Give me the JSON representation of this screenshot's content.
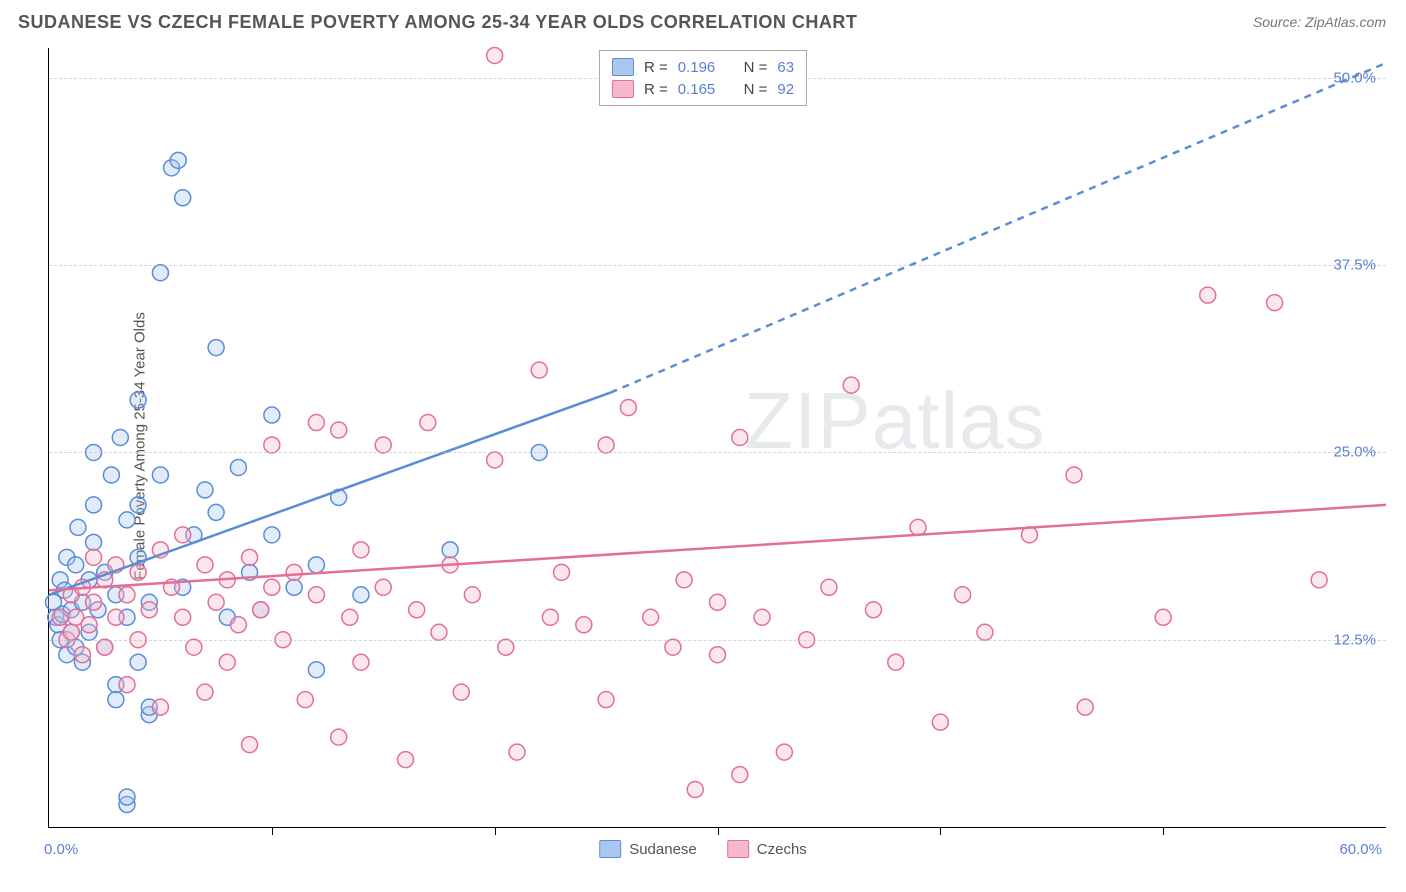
{
  "title": "SUDANESE VS CZECH FEMALE POVERTY AMONG 25-34 YEAR OLDS CORRELATION CHART",
  "source": "Source: ZipAtlas.com",
  "ylabel": "Female Poverty Among 25-34 Year Olds",
  "watermark": "ZIPatlas",
  "chart": {
    "type": "scatter",
    "xlim": [
      0,
      60
    ],
    "ylim": [
      0,
      52
    ],
    "xtick_positions": [
      10,
      20,
      30,
      40,
      50
    ],
    "y_gridlines": [
      12.5,
      25.0,
      37.5,
      50.0
    ],
    "y_tick_labels": [
      "12.5%",
      "25.0%",
      "37.5%",
      "50.0%"
    ],
    "x0_label": "0.0%",
    "xmax_label": "60.0%",
    "background_color": "#ffffff",
    "grid_color": "#bbbbbb",
    "axis_color": "#000000",
    "marker_radius": 8,
    "series": [
      {
        "name": "Sudanese",
        "color_stroke": "#5b8dd6",
        "color_fill": "#a9c7ef",
        "R": "0.196",
        "N": "63",
        "regression": {
          "solid": {
            "x1": 0,
            "y1": 15.5,
            "x2": 25.2,
            "y2": 29.0
          },
          "dashed": {
            "x1": 25.2,
            "y1": 29.0,
            "x2": 60,
            "y2": 51.0
          },
          "stroke_width": 2.5,
          "dash": "7 6"
        },
        "points": [
          [
            0.2,
            15.0
          ],
          [
            0.3,
            14.0
          ],
          [
            0.4,
            13.5
          ],
          [
            0.5,
            16.5
          ],
          [
            0.5,
            12.5
          ],
          [
            0.6,
            14.2
          ],
          [
            0.7,
            15.8
          ],
          [
            0.8,
            11.5
          ],
          [
            0.8,
            18.0
          ],
          [
            1.0,
            13.0
          ],
          [
            1.0,
            14.5
          ],
          [
            1.2,
            12.0
          ],
          [
            1.2,
            17.5
          ],
          [
            1.3,
            20.0
          ],
          [
            1.5,
            15.0
          ],
          [
            1.5,
            11.0
          ],
          [
            1.8,
            16.5
          ],
          [
            1.8,
            13.0
          ],
          [
            2.0,
            19.0
          ],
          [
            2.0,
            21.5
          ],
          [
            2.0,
            25.0
          ],
          [
            2.2,
            14.5
          ],
          [
            2.5,
            12.0
          ],
          [
            2.5,
            17.0
          ],
          [
            2.8,
            23.5
          ],
          [
            3.0,
            15.5
          ],
          [
            3.0,
            9.5
          ],
          [
            3.0,
            8.5
          ],
          [
            3.2,
            26.0
          ],
          [
            3.5,
            20.5
          ],
          [
            3.5,
            14.0
          ],
          [
            3.5,
            1.5
          ],
          [
            3.5,
            2.0
          ],
          [
            4.0,
            18.0
          ],
          [
            4.0,
            11.0
          ],
          [
            4.0,
            21.5
          ],
          [
            4.0,
            28.5
          ],
          [
            4.5,
            15.0
          ],
          [
            4.5,
            7.5
          ],
          [
            4.5,
            8.0
          ],
          [
            5.0,
            23.5
          ],
          [
            5.0,
            37.0
          ],
          [
            5.5,
            44.0
          ],
          [
            5.8,
            44.5
          ],
          [
            6.0,
            16.0
          ],
          [
            6.0,
            42.0
          ],
          [
            6.5,
            19.5
          ],
          [
            7.0,
            22.5
          ],
          [
            7.5,
            21.0
          ],
          [
            7.5,
            32.0
          ],
          [
            8.0,
            14.0
          ],
          [
            8.5,
            24.0
          ],
          [
            9.0,
            17.0
          ],
          [
            9.5,
            14.5
          ],
          [
            10.0,
            19.5
          ],
          [
            10.0,
            27.5
          ],
          [
            11.0,
            16.0
          ],
          [
            12.0,
            17.5
          ],
          [
            12.0,
            10.5
          ],
          [
            13.0,
            22.0
          ],
          [
            14.0,
            15.5
          ],
          [
            18.0,
            18.5
          ],
          [
            22.0,
            25.0
          ]
        ]
      },
      {
        "name": "Czechs",
        "color_stroke": "#e36f99",
        "color_fill": "#f5b9cd",
        "R": "0.165",
        "N": "92",
        "regression": {
          "solid": {
            "x1": 0,
            "y1": 15.8,
            "x2": 60,
            "y2": 21.5
          },
          "dashed": null,
          "stroke_width": 2.5
        },
        "points": [
          [
            0.5,
            14.0
          ],
          [
            0.8,
            12.5
          ],
          [
            1.0,
            15.5
          ],
          [
            1.0,
            13.0
          ],
          [
            1.2,
            14.0
          ],
          [
            1.5,
            16.0
          ],
          [
            1.5,
            11.5
          ],
          [
            1.8,
            13.5
          ],
          [
            2.0,
            15.0
          ],
          [
            2.0,
            18.0
          ],
          [
            2.5,
            12.0
          ],
          [
            2.5,
            16.5
          ],
          [
            3.0,
            14.0
          ],
          [
            3.0,
            17.5
          ],
          [
            3.5,
            15.5
          ],
          [
            3.5,
            9.5
          ],
          [
            4.0,
            17.0
          ],
          [
            4.0,
            12.5
          ],
          [
            4.5,
            14.5
          ],
          [
            5.0,
            18.5
          ],
          [
            5.0,
            8.0
          ],
          [
            5.5,
            16.0
          ],
          [
            6.0,
            14.0
          ],
          [
            6.0,
            19.5
          ],
          [
            6.5,
            12.0
          ],
          [
            7.0,
            17.5
          ],
          [
            7.0,
            9.0
          ],
          [
            7.5,
            15.0
          ],
          [
            8.0,
            16.5
          ],
          [
            8.0,
            11.0
          ],
          [
            8.5,
            13.5
          ],
          [
            9.0,
            5.5
          ],
          [
            9.0,
            18.0
          ],
          [
            9.5,
            14.5
          ],
          [
            10.0,
            16.0
          ],
          [
            10.0,
            25.5
          ],
          [
            10.5,
            12.5
          ],
          [
            11.0,
            17.0
          ],
          [
            11.5,
            8.5
          ],
          [
            12.0,
            27.0
          ],
          [
            12.0,
            15.5
          ],
          [
            13.0,
            6.0
          ],
          [
            13.0,
            26.5
          ],
          [
            13.5,
            14.0
          ],
          [
            14.0,
            18.5
          ],
          [
            14.0,
            11.0
          ],
          [
            15.0,
            25.5
          ],
          [
            15.0,
            16.0
          ],
          [
            16.0,
            4.5
          ],
          [
            16.5,
            14.5
          ],
          [
            17.0,
            27.0
          ],
          [
            17.5,
            13.0
          ],
          [
            18.0,
            17.5
          ],
          [
            18.5,
            9.0
          ],
          [
            19.0,
            15.5
          ],
          [
            20.0,
            24.5
          ],
          [
            20.0,
            51.5
          ],
          [
            20.5,
            12.0
          ],
          [
            21.0,
            5.0
          ],
          [
            22.0,
            30.5
          ],
          [
            22.5,
            14.0
          ],
          [
            23.0,
            17.0
          ],
          [
            24.0,
            13.5
          ],
          [
            25.0,
            8.5
          ],
          [
            25.0,
            25.5
          ],
          [
            26.0,
            28.0
          ],
          [
            27.0,
            14.0
          ],
          [
            28.0,
            12.0
          ],
          [
            28.5,
            16.5
          ],
          [
            29.0,
            2.5
          ],
          [
            30.0,
            11.5
          ],
          [
            30.0,
            15.0
          ],
          [
            31.0,
            3.5
          ],
          [
            31.0,
            26.0
          ],
          [
            32.0,
            14.0
          ],
          [
            33.0,
            5.0
          ],
          [
            34.0,
            12.5
          ],
          [
            35.0,
            16.0
          ],
          [
            36.0,
            29.5
          ],
          [
            37.0,
            14.5
          ],
          [
            38.0,
            11.0
          ],
          [
            39.0,
            20.0
          ],
          [
            40.0,
            7.0
          ],
          [
            41.0,
            15.5
          ],
          [
            42.0,
            13.0
          ],
          [
            44.0,
            19.5
          ],
          [
            46.0,
            23.5
          ],
          [
            46.5,
            8.0
          ],
          [
            50.0,
            14.0
          ],
          [
            52.0,
            35.5
          ],
          [
            55.0,
            35.0
          ],
          [
            57.0,
            16.5
          ]
        ]
      }
    ]
  },
  "bottom_legend": {
    "items": [
      {
        "label": "Sudanese",
        "fill": "#a9c7ef",
        "stroke": "#5b8dd6"
      },
      {
        "label": "Czechs",
        "fill": "#f5b9cd",
        "stroke": "#e36f99"
      }
    ]
  },
  "stat_legend": {
    "r_label": "R =",
    "n_label": "N ="
  },
  "colors": {
    "label_blue": "#5b7fd6",
    "text_gray": "#555555"
  },
  "fonts": {
    "title_size": 18,
    "label_size": 15,
    "watermark_size": 80
  }
}
